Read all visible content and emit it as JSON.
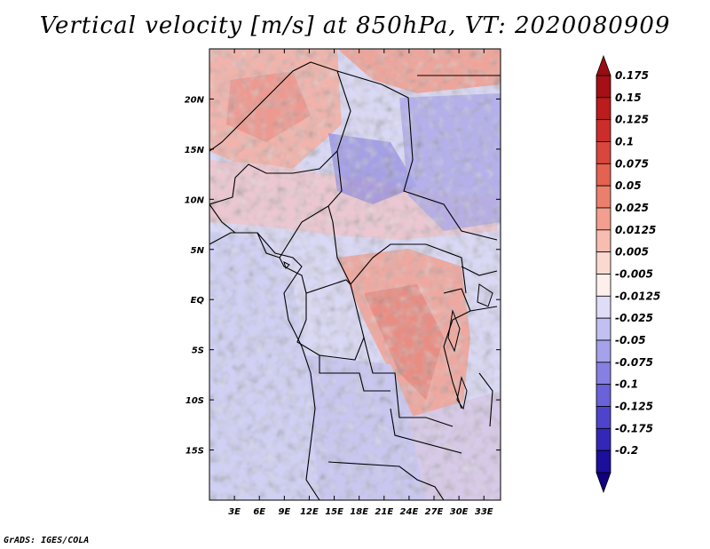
{
  "title": "Vertical velocity [m/s] at 850hPa, VT: 2020080909",
  "credit": "GrADS: IGES/COLA",
  "map": {
    "lon_range": [
      0,
      35
    ],
    "lat_range": [
      -20,
      25
    ],
    "lon_ticks": [
      {
        "value": 3,
        "label": "3E"
      },
      {
        "value": 6,
        "label": "6E"
      },
      {
        "value": 9,
        "label": "9E"
      },
      {
        "value": 12,
        "label": "12E"
      },
      {
        "value": 15,
        "label": "15E"
      },
      {
        "value": 18,
        "label": "18E"
      },
      {
        "value": 21,
        "label": "21E"
      },
      {
        "value": 24,
        "label": "24E"
      },
      {
        "value": 27,
        "label": "27E"
      },
      {
        "value": 30,
        "label": "30E"
      },
      {
        "value": 33,
        "label": "33E"
      }
    ],
    "lat_ticks": [
      {
        "value": 20,
        "label": "20N"
      },
      {
        "value": 15,
        "label": "15N"
      },
      {
        "value": 10,
        "label": "10N"
      },
      {
        "value": 5,
        "label": "5N"
      },
      {
        "value": 0,
        "label": "EQ"
      },
      {
        "value": -5,
        "label": "5S"
      },
      {
        "value": -10,
        "label": "10S"
      },
      {
        "value": -15,
        "label": "15S"
      }
    ]
  },
  "colorbar": {
    "levels": [
      {
        "label": "0.175",
        "color": "#a50f15"
      },
      {
        "label": "0.15",
        "color": "#bb1c1c"
      },
      {
        "label": "0.125",
        "color": "#cb2d2a"
      },
      {
        "label": "0.1",
        "color": "#d9463c"
      },
      {
        "label": "0.075",
        "color": "#e46250"
      },
      {
        "label": "0.05",
        "color": "#ec7f6c"
      },
      {
        "label": "0.025",
        "color": "#f39e8e"
      },
      {
        "label": "0.0125",
        "color": "#f8bdb1"
      },
      {
        "label": "0.005",
        "color": "#fbd9d1"
      },
      {
        "label": "-0.005",
        "color": "#fdf0ec"
      },
      {
        "label": "-0.0125",
        "color": "#dedcf6"
      },
      {
        "label": "-0.025",
        "color": "#c2c0f0"
      },
      {
        "label": "-0.05",
        "color": "#a5a1ea"
      },
      {
        "label": "-0.075",
        "color": "#8680e2"
      },
      {
        "label": "-0.1",
        "color": "#6a62d8"
      },
      {
        "label": "-0.125",
        "color": "#4e44cb"
      },
      {
        "label": "-0.175",
        "color": "#3327b8"
      },
      {
        "label": "-0.2",
        "color": "#1c0f9c"
      }
    ],
    "low_end_color": "#120080",
    "high_end_color": "#9b0c12"
  }
}
